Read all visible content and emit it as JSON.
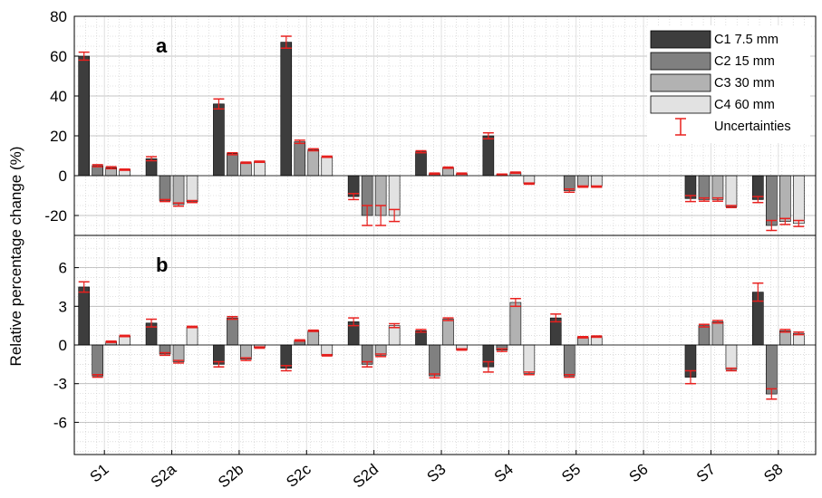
{
  "chart_data": {
    "type": "bar",
    "ylabel": "Relative percentage change (%)",
    "categories": [
      "S1",
      "S2a",
      "S2b",
      "S2c",
      "S2d",
      "S3",
      "S4",
      "S5",
      "S6",
      "S7",
      "S8"
    ],
    "legend": {
      "placement": "top-right",
      "entries": [
        "C1 7.5 mm",
        "C2 15 mm",
        "C3 30 mm",
        "C4 60 mm",
        "Uncertainties"
      ]
    },
    "colors": {
      "C1": "#3d3d3d",
      "C2": "#808080",
      "C3": "#b2b2b2",
      "C4": "#e2e2e2",
      "uncertainty": "#e8201e"
    },
    "grid": true,
    "panels": [
      {
        "label": "a",
        "ylim": [
          -30,
          80
        ],
        "yticks": [
          -20,
          0,
          20,
          40,
          60,
          80
        ],
        "yticklabels": [
          "-20",
          "0",
          "20",
          "40",
          "60",
          "80"
        ],
        "series": [
          {
            "values": [
              60,
              8.5,
              36,
              67,
              -10.5,
              12,
              20,
              0,
              0,
              -11.5,
              -12
            ]
          },
          {
            "values": [
              5,
              -12.5,
              11,
              17,
              -20,
              1,
              0.5,
              -7.5,
              0,
              -12,
              -25
            ]
          },
          {
            "values": [
              4,
              -14.5,
              6.5,
              13,
              -20,
              4,
              1.5,
              -5.5,
              0,
              -12,
              -23
            ]
          },
          {
            "values": [
              3,
              -13,
              7,
              9.5,
              -20,
              1,
              -4,
              -5.5,
              0,
              -15.5,
              -24
            ]
          }
        ],
        "errors": [
          [
            2,
            1,
            2.5,
            3,
            1.5,
            0.5,
            1.5,
            0,
            0,
            1.5,
            1.5
          ],
          [
            0.5,
            0.5,
            0.5,
            0.8,
            5,
            0.3,
            0.3,
            0.8,
            0,
            0.8,
            2.5
          ],
          [
            0.5,
            0.8,
            0.3,
            0.5,
            5,
            0.3,
            0.3,
            0.3,
            0,
            0.8,
            1.5
          ],
          [
            0.3,
            0.5,
            0.3,
            0.3,
            3,
            0.3,
            0.3,
            0.3,
            0,
            0.5,
            1.5
          ]
        ]
      },
      {
        "label": "b",
        "ylim": [
          -8.5,
          8.5
        ],
        "yticks": [
          -6,
          -3,
          0,
          3,
          6
        ],
        "yticklabels": [
          "-6",
          "-3",
          "0",
          "3",
          "6"
        ],
        "series": [
          {
            "values": [
              4.5,
              1.7,
              -1.5,
              -1.8,
              1.8,
              1.1,
              -1.7,
              2.1,
              0,
              -2.5,
              4.1
            ]
          },
          {
            "values": [
              -2.4,
              -0.7,
              2.1,
              0.35,
              -1.5,
              -2.4,
              -0.4,
              -2.4,
              0,
              1.5,
              -3.8
            ]
          },
          {
            "values": [
              0.25,
              -1.3,
              -1.1,
              1.1,
              -0.8,
              2.0,
              3.3,
              0.6,
              0,
              1.8,
              1.1
            ]
          },
          {
            "values": [
              0.7,
              1.4,
              -0.2,
              -0.8,
              1.5,
              -0.35,
              -2.2,
              0.65,
              0,
              -1.9,
              0.9
            ]
          }
        ],
        "errors": [
          [
            0.4,
            0.3,
            0.2,
            0.2,
            0.3,
            0.1,
            0.4,
            0.3,
            0,
            0.5,
            0.7
          ],
          [
            0.1,
            0.1,
            0.1,
            0.05,
            0.2,
            0.15,
            0.1,
            0.1,
            0,
            0.1,
            0.4
          ],
          [
            0.05,
            0.1,
            0.1,
            0.05,
            0.1,
            0.1,
            0.3,
            0.05,
            0,
            0.1,
            0.1
          ],
          [
            0.05,
            0.05,
            0.05,
            0.05,
            0.15,
            0.05,
            0.1,
            0.05,
            0,
            0.1,
            0.1
          ]
        ]
      }
    ]
  }
}
